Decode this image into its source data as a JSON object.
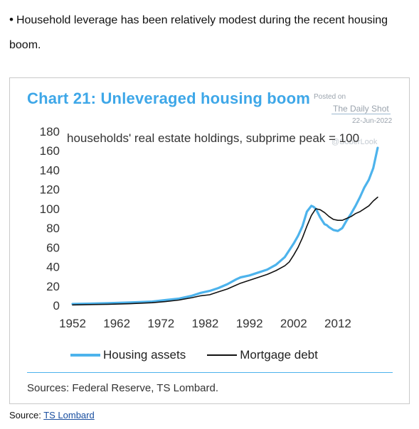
{
  "intro": {
    "bullet": "•",
    "text": "Household leverage has been relatively modest during the recent housing boom."
  },
  "card": {
    "watermark": {
      "posted": "Posted on",
      "site": "The Daily Shot",
      "date": "22-Jun-2022",
      "handle": "@SoberLook"
    },
    "sources": "Sources: Federal Reserve, TS Lombard."
  },
  "colors": {
    "housing": "#4db3ec",
    "mortgage": "#111111",
    "title": "#3ea7e8"
  },
  "chart_data": {
    "type": "line",
    "title": "Chart 21: Unleveraged housing boom",
    "subtitle": "households' real estate holdings, subprime peak = 100",
    "xlim": [
      1952,
      2021.5
    ],
    "ylim": [
      0,
      180
    ],
    "xticks": [
      "1952",
      "1962",
      "1972",
      "1982",
      "1992",
      "2002",
      "2012"
    ],
    "yticks": [
      "0",
      "20",
      "40",
      "60",
      "80",
      "100",
      "120",
      "140",
      "160",
      "180"
    ],
    "grid": false,
    "legend_position": "bottom",
    "series": [
      {
        "name": "Housing assets",
        "color": "#4db3ec",
        "x": [
          1952,
          1955,
          1960,
          1965,
          1970,
          1973,
          1976,
          1979,
          1981,
          1983,
          1985,
          1987,
          1989,
          1990,
          1992,
          1994,
          1996,
          1998,
          2000,
          2001,
          2002,
          2003,
          2004,
          2005,
          2006,
          2006.5,
          2007,
          2008,
          2009,
          2009.5,
          2010,
          2011,
          2012,
          2013,
          2014,
          2015,
          2016,
          2017,
          2018,
          2019,
          2020,
          2021
        ],
        "y": [
          1.5,
          1.8,
          2.3,
          3,
          4,
          5.5,
          7,
          10,
          13,
          15,
          18,
          22,
          27,
          29,
          31,
          34,
          37,
          42,
          50,
          57,
          64,
          72,
          82,
          97,
          103,
          102,
          100,
          91,
          84,
          83,
          81,
          78,
          77,
          80,
          88,
          95,
          103,
          112,
          122,
          130,
          142,
          163
        ]
      },
      {
        "name": "Mortgage debt",
        "color": "#111111",
        "x": [
          1952,
          1955,
          1960,
          1965,
          1970,
          1973,
          1976,
          1979,
          1981,
          1983,
          1985,
          1987,
          1989,
          1990,
          1992,
          1994,
          1996,
          1998,
          2000,
          2001,
          2002,
          2003,
          2004,
          2005,
          2006,
          2007,
          2008,
          2009,
          2010,
          2011,
          2012,
          2013,
          2014,
          2015,
          2016,
          2017,
          2018,
          2019,
          2020,
          2021
        ],
        "y": [
          0.5,
          0.8,
          1.2,
          1.8,
          2.8,
          4,
          5.5,
          8,
          10,
          11,
          14,
          17,
          21,
          23,
          26,
          29,
          32,
          36,
          41,
          45,
          52,
          60,
          70,
          82,
          93,
          100,
          99,
          96,
          92,
          89,
          88,
          88,
          90,
          92,
          95,
          97,
          100,
          103,
          108,
          112
        ]
      }
    ]
  },
  "footer": {
    "label": "Source: ",
    "link_text": "TS Lombard"
  }
}
